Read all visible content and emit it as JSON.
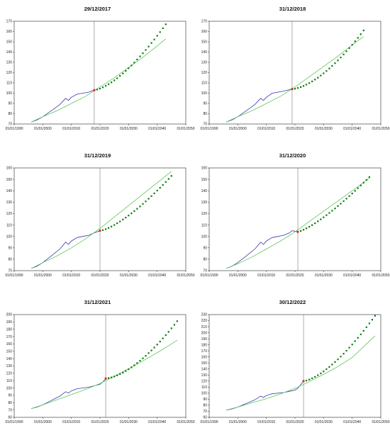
{
  "chart_data": [
    {
      "type": "line",
      "title": "29/12/2017",
      "xlim": [
        "01/01/1990",
        "01/01/2050"
      ],
      "x_ticks": [
        "01/01/1990",
        "01/01/2000",
        "01/01/2010",
        "01/01/2020",
        "01/01/2030",
        "01/01/2040",
        "01/01/2050"
      ],
      "ylim": [
        70,
        170
      ],
      "y_ticks": [
        70,
        80,
        90,
        100,
        110,
        120,
        130,
        140,
        150,
        160,
        170
      ],
      "vline": "29/12/2017",
      "colors": {
        "history": "#3a3aa8",
        "trend": "#5cc65c",
        "forecast": "#0b7a0b",
        "point": "#e21b1b",
        "vline": "#777777",
        "axis": "#444444"
      },
      "series": [
        {
          "role": "history",
          "x": [
            1996,
            1998,
            2000,
            2002,
            2004,
            2006,
            2008,
            2009,
            2010,
            2012,
            2014,
            2016,
            2017.99
          ],
          "y": [
            72,
            74,
            77,
            81,
            85,
            89,
            95,
            93,
            96,
            99,
            100,
            101,
            103
          ]
        },
        {
          "role": "trend",
          "x": [
            1996,
            2000,
            2005,
            2010,
            2015,
            2020,
            2025,
            2030,
            2035,
            2040,
            2043
          ],
          "y": [
            72,
            77,
            83,
            90,
            97,
            106,
            115,
            125,
            135,
            146,
            153
          ]
        },
        {
          "role": "forecast",
          "x": [
            2018,
            2043
          ],
          "y": [
            103,
            167
          ],
          "points": 25,
          "curve": 1.5
        },
        {
          "role": "point",
          "x": [
            2017.99
          ],
          "y": [
            103
          ]
        }
      ]
    },
    {
      "type": "line",
      "title": "31/12/2018",
      "xlim": [
        "01/01/1990",
        "01/01/2050"
      ],
      "x_ticks": [
        "01/01/1990",
        "01/01/2000",
        "01/01/2010",
        "01/01/2020",
        "01/01/2030",
        "01/01/2040",
        "01/01/2050"
      ],
      "ylim": [
        70,
        170
      ],
      "y_ticks": [
        70,
        80,
        90,
        100,
        110,
        120,
        130,
        140,
        150,
        160,
        170
      ],
      "vline": "31/12/2018",
      "colors": {
        "history": "#3a3aa8",
        "trend": "#5cc65c",
        "forecast": "#0b7a0b",
        "point": "#e21b1b",
        "vline": "#777777",
        "axis": "#444444"
      },
      "series": [
        {
          "role": "history",
          "x": [
            1996,
            1998,
            2000,
            2002,
            2004,
            2006,
            2008,
            2009,
            2010,
            2012,
            2014,
            2016,
            2019
          ],
          "y": [
            72,
            74,
            77,
            81,
            85,
            89,
            95,
            93,
            96,
            100,
            101,
            102,
            104
          ]
        },
        {
          "role": "trend",
          "x": [
            1996,
            2000,
            2005,
            2010,
            2015,
            2020,
            2025,
            2030,
            2035,
            2040,
            2044
          ],
          "y": [
            72,
            77,
            83,
            90,
            97,
            106,
            116,
            126,
            136,
            147,
            155
          ]
        },
        {
          "role": "forecast",
          "x": [
            2019,
            2044
          ],
          "y": [
            104,
            161
          ],
          "points": 25,
          "curve": 1.6
        },
        {
          "role": "point",
          "x": [
            2019
          ],
          "y": [
            104
          ]
        }
      ]
    },
    {
      "type": "line",
      "title": "31/12/2019",
      "xlim": [
        "01/01/1990",
        "01/01/2050"
      ],
      "x_ticks": [
        "01/01/1990",
        "01/01/2000",
        "01/01/2010",
        "01/01/2020",
        "01/01/2030",
        "01/01/2040",
        "01/01/2050"
      ],
      "ylim": [
        70,
        160
      ],
      "y_ticks": [
        70,
        80,
        90,
        100,
        110,
        120,
        130,
        140,
        150,
        160
      ],
      "vline": "31/12/2019",
      "colors": {
        "history": "#3a3aa8",
        "trend": "#5cc65c",
        "forecast": "#0b7a0b",
        "point": "#e21b1b",
        "vline": "#777777",
        "axis": "#444444"
      },
      "series": [
        {
          "role": "history",
          "x": [
            1996,
            1998,
            2000,
            2002,
            2004,
            2006,
            2008,
            2009,
            2010,
            2012,
            2014,
            2016,
            2018,
            2020
          ],
          "y": [
            72,
            74,
            77,
            81,
            85,
            89,
            95,
            93,
            96,
            99,
            100,
            101,
            103,
            105
          ]
        },
        {
          "role": "trend",
          "x": [
            1996,
            2000,
            2005,
            2010,
            2015,
            2020,
            2025,
            2030,
            2035,
            2040,
            2045
          ],
          "y": [
            72,
            77,
            83,
            90,
            98,
            107,
            117,
            127,
            137,
            147,
            157
          ]
        },
        {
          "role": "forecast",
          "x": [
            2020,
            2045
          ],
          "y": [
            105,
            153
          ],
          "points": 25,
          "curve": 1.4
        },
        {
          "role": "point",
          "x": [
            2020
          ],
          "y": [
            105
          ]
        }
      ]
    },
    {
      "type": "line",
      "title": "31/12/2020",
      "xlim": [
        "01/01/1990",
        "01/01/2050"
      ],
      "x_ticks": [
        "01/01/1990",
        "01/01/2000",
        "01/01/2010",
        "01/01/2020",
        "01/01/2030",
        "01/01/2040",
        "01/01/2050"
      ],
      "ylim": [
        70,
        160
      ],
      "y_ticks": [
        70,
        80,
        90,
        100,
        110,
        120,
        130,
        140,
        150,
        160
      ],
      "vline": "31/12/2020",
      "colors": {
        "history": "#3a3aa8",
        "trend": "#5cc65c",
        "forecast": "#0b7a0b",
        "point": "#e21b1b",
        "vline": "#777777",
        "axis": "#444444"
      },
      "series": [
        {
          "role": "history",
          "x": [
            1996,
            1998,
            2000,
            2002,
            2004,
            2006,
            2008,
            2009,
            2010,
            2012,
            2014,
            2016,
            2018,
            2019,
            2021
          ],
          "y": [
            72,
            74,
            77,
            81,
            85,
            89,
            95,
            93,
            96,
            99,
            100,
            101,
            103,
            105,
            104
          ]
        },
        {
          "role": "trend",
          "x": [
            1996,
            2000,
            2005,
            2010,
            2015,
            2020,
            2025,
            2030,
            2035,
            2040,
            2046
          ],
          "y": [
            72,
            76,
            82,
            89,
            96,
            104,
            113,
            122,
            131,
            140,
            151
          ]
        },
        {
          "role": "forecast",
          "x": [
            2021,
            2046
          ],
          "y": [
            104,
            152
          ],
          "points": 25,
          "curve": 1.3
        },
        {
          "role": "point",
          "x": [
            2021
          ],
          "y": [
            104
          ]
        }
      ]
    },
    {
      "type": "line",
      "title": "31/12/2021",
      "xlim": [
        "01/01/1990",
        "01/01/2050"
      ],
      "x_ticks": [
        "01/01/1990",
        "01/01/2000",
        "01/01/2010",
        "01/01/2020",
        "01/01/2030",
        "01/01/2040",
        "01/01/2050"
      ],
      "ylim": [
        60,
        200
      ],
      "y_ticks": [
        60,
        70,
        80,
        90,
        100,
        110,
        120,
        130,
        140,
        150,
        160,
        170,
        180,
        190,
        200
      ],
      "vline": "31/12/2021",
      "colors": {
        "history": "#3a3aa8",
        "trend": "#5cc65c",
        "forecast": "#0b7a0b",
        "point": "#e21b1b",
        "vline": "#777777",
        "axis": "#444444"
      },
      "series": [
        {
          "role": "history",
          "x": [
            1996,
            1998,
            2000,
            2002,
            2004,
            2006,
            2008,
            2009,
            2010,
            2012,
            2014,
            2016,
            2018,
            2020,
            2021,
            2022
          ],
          "y": [
            72,
            74,
            77,
            81,
            85,
            89,
            95,
            93,
            96,
            99,
            100,
            101,
            103,
            105,
            108,
            113
          ]
        },
        {
          "role": "trend",
          "x": [
            1996,
            2000,
            2005,
            2010,
            2015,
            2020,
            2025,
            2030,
            2035,
            2040,
            2047
          ],
          "y": [
            72,
            77,
            84,
            91,
            98,
            106,
            116,
            126,
            137,
            148,
            165
          ]
        },
        {
          "role": "forecast",
          "x": [
            2022,
            2047
          ],
          "y": [
            113,
            191
          ],
          "points": 25,
          "curve": 1.6
        },
        {
          "role": "point",
          "x": [
            2022
          ],
          "y": [
            113
          ]
        }
      ]
    },
    {
      "type": "line",
      "title": "30/12/2022",
      "xlim": [
        "01/01/1990",
        "01/01/2050"
      ],
      "x_ticks": [
        "01/01/1990",
        "01/01/2000",
        "01/01/2010",
        "01/01/2020",
        "01/01/2030",
        "01/01/2040",
        "01/01/2050"
      ],
      "ylim": [
        60,
        230
      ],
      "y_ticks": [
        60,
        70,
        80,
        90,
        100,
        110,
        120,
        130,
        140,
        150,
        160,
        170,
        180,
        190,
        200,
        210,
        220,
        230
      ],
      "vline": "30/12/2022",
      "colors": {
        "history": "#3a3aa8",
        "trend": "#5cc65c",
        "forecast": "#0b7a0b",
        "point": "#e21b1b",
        "vline": "#777777",
        "axis": "#444444"
      },
      "series": [
        {
          "role": "history",
          "x": [
            1996,
            1998,
            2000,
            2002,
            2004,
            2006,
            2008,
            2009,
            2010,
            2012,
            2014,
            2016,
            2018,
            2020,
            2021,
            2023
          ],
          "y": [
            72,
            74,
            77,
            81,
            85,
            89,
            95,
            93,
            96,
            99,
            100,
            101,
            103,
            105,
            108,
            120
          ]
        },
        {
          "role": "trend",
          "x": [
            1996,
            2000,
            2005,
            2010,
            2015,
            2020,
            2025,
            2030,
            2035,
            2040,
            2048
          ],
          "y": [
            72,
            77,
            84,
            91,
            99,
            108,
            119,
            131,
            144,
            159,
            195
          ]
        },
        {
          "role": "forecast",
          "x": [
            2023,
            2048
          ],
          "y": [
            120,
            228
          ],
          "points": 25,
          "curve": 1.5
        },
        {
          "role": "point",
          "x": [
            2023
          ],
          "y": [
            120
          ]
        }
      ]
    }
  ]
}
